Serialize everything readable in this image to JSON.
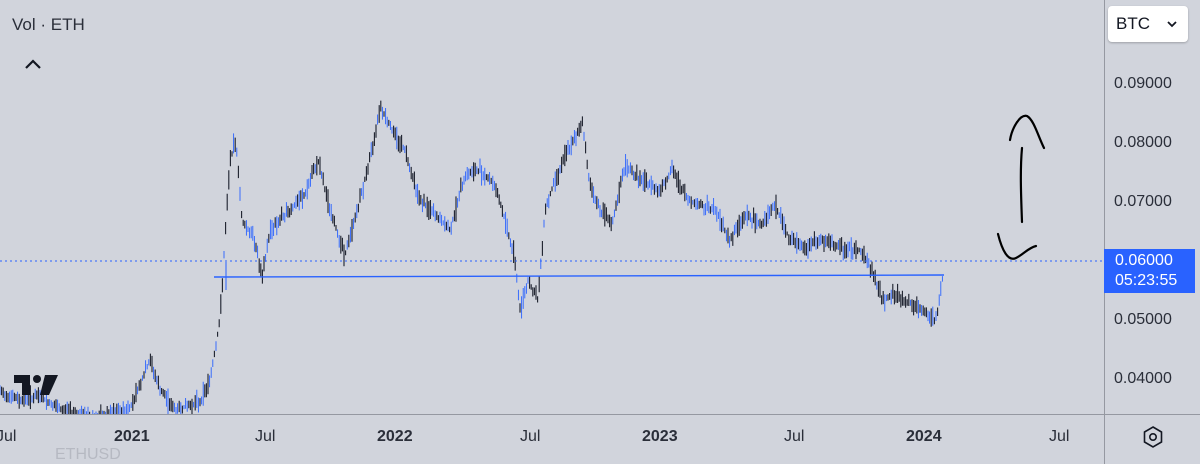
{
  "legend": {
    "text": "Vol · ETH"
  },
  "symbol_select": {
    "value": "BTC"
  },
  "price_axis": {
    "ticks": [
      "0.09000",
      "0.08000",
      "0.07000",
      "0.06000",
      "0.05000",
      "0.04000"
    ]
  },
  "time_axis": {
    "ticks": [
      "Jul",
      "2021",
      "Jul",
      "2022",
      "Jul",
      "2023",
      "Jul",
      "2024",
      "Jul"
    ],
    "bold_index": 7
  },
  "last_price": {
    "value": "0.06000",
    "countdown": "05:23:55"
  },
  "faded_text": "ETHUSD",
  "colors": {
    "background": "#d1d4dc",
    "accent": "#2962ff",
    "candle": "#1b1f2c",
    "price_line": "#2962ff"
  },
  "icons": {
    "collapse": "chevron-up-icon",
    "select": "chevron-down-icon",
    "settings": "gear-icon",
    "logo": "tradingview-logo-icon"
  }
}
